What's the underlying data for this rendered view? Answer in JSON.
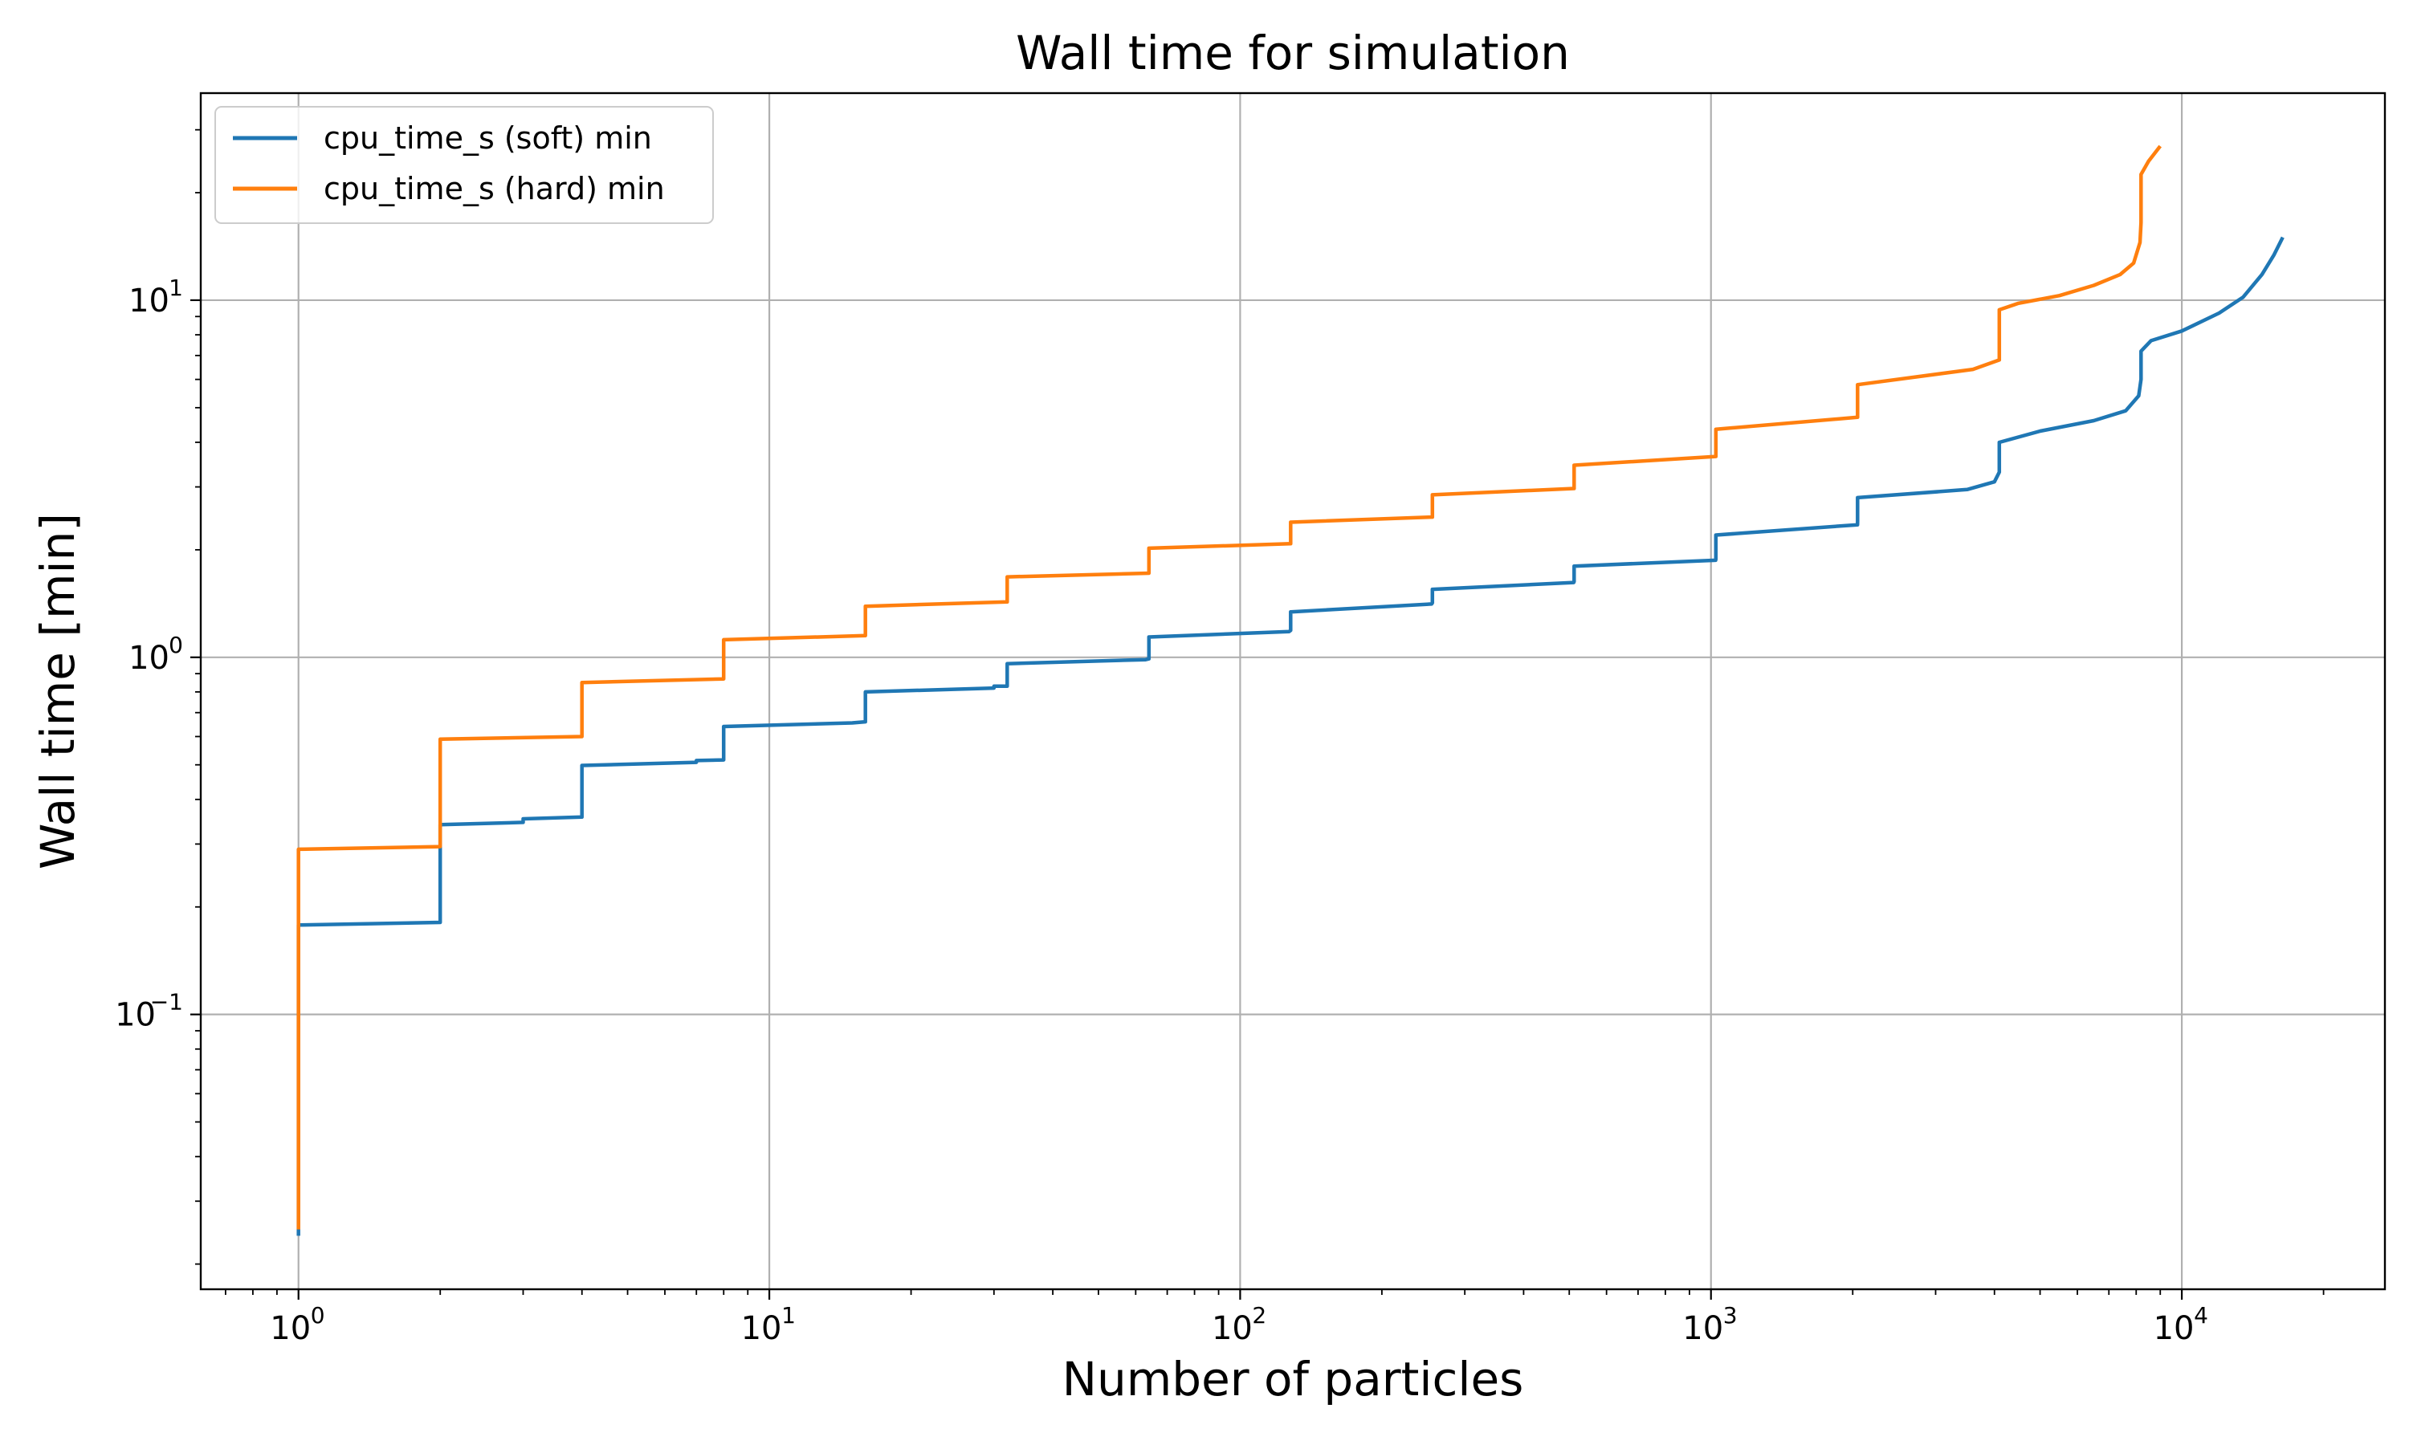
{
  "chart_data": {
    "type": "line",
    "title": "Wall time for simulation",
    "xlabel": "Number of particles",
    "ylabel": "Wall time [min]",
    "xscale": "log",
    "yscale": "log",
    "xlim": [
      0.62,
      27000
    ],
    "ylim": [
      0.017,
      38
    ],
    "grid": true,
    "legend_position": "upper-left",
    "x_ticks": [
      {
        "value": 1,
        "base": "10",
        "exp": "0"
      },
      {
        "value": 10,
        "base": "10",
        "exp": "1"
      },
      {
        "value": 100,
        "base": "10",
        "exp": "2"
      },
      {
        "value": 1000,
        "base": "10",
        "exp": "3"
      },
      {
        "value": 10000,
        "base": "10",
        "exp": "4"
      }
    ],
    "y_ticks": [
      {
        "value": 0.1,
        "base": "10",
        "exp": "−1"
      },
      {
        "value": 1,
        "base": "10",
        "exp": "0"
      },
      {
        "value": 10,
        "base": "10",
        "exp": "1"
      }
    ],
    "series": [
      {
        "name": "cpu_time_s (soft) min",
        "color": "#1f77b4",
        "points": [
          [
            1,
            0.024
          ],
          [
            1,
            0.178
          ],
          [
            2,
            0.181
          ],
          [
            2,
            0.34
          ],
          [
            3,
            0.345
          ],
          [
            3,
            0.353
          ],
          [
            4,
            0.357
          ],
          [
            4,
            0.498
          ],
          [
            7,
            0.508
          ],
          [
            7,
            0.514
          ],
          [
            8,
            0.516
          ],
          [
            8,
            0.64
          ],
          [
            15,
            0.655
          ],
          [
            16,
            0.66
          ],
          [
            16,
            0.8
          ],
          [
            30,
            0.82
          ],
          [
            30,
            0.83
          ],
          [
            32,
            0.83
          ],
          [
            32,
            0.96
          ],
          [
            63,
            0.985
          ],
          [
            64,
            0.99
          ],
          [
            64,
            1.14
          ],
          [
            127,
            1.18
          ],
          [
            128,
            1.19
          ],
          [
            128,
            1.34
          ],
          [
            255,
            1.41
          ],
          [
            256,
            1.42
          ],
          [
            256,
            1.55
          ],
          [
            511,
            1.62
          ],
          [
            512,
            1.63
          ],
          [
            512,
            1.8
          ],
          [
            1023,
            1.87
          ],
          [
            1024,
            1.88
          ],
          [
            1024,
            2.2
          ],
          [
            2047,
            2.35
          ],
          [
            2048,
            2.4
          ],
          [
            2048,
            2.8
          ],
          [
            3500,
            2.95
          ],
          [
            4000,
            3.1
          ],
          [
            4096,
            3.3
          ],
          [
            4096,
            4.0
          ],
          [
            5000,
            4.3
          ],
          [
            6500,
            4.6
          ],
          [
            7600,
            4.9
          ],
          [
            8100,
            5.4
          ],
          [
            8192,
            6.0
          ],
          [
            8192,
            7.2
          ],
          [
            8600,
            7.7
          ],
          [
            10000,
            8.2
          ],
          [
            12000,
            9.2
          ],
          [
            13500,
            10.2
          ],
          [
            14800,
            11.8
          ],
          [
            15700,
            13.4
          ],
          [
            16384,
            15.0
          ]
        ]
      },
      {
        "name": "cpu_time_s (hard) min",
        "color": "#ff7f0e",
        "points": [
          [
            1,
            0.025
          ],
          [
            1,
            0.29
          ],
          [
            2,
            0.295
          ],
          [
            2,
            0.59
          ],
          [
            4,
            0.6
          ],
          [
            4,
            0.85
          ],
          [
            8,
            0.87
          ],
          [
            8,
            1.12
          ],
          [
            16,
            1.15
          ],
          [
            16,
            1.39
          ],
          [
            32,
            1.43
          ],
          [
            32,
            1.68
          ],
          [
            64,
            1.72
          ],
          [
            64,
            2.02
          ],
          [
            128,
            2.08
          ],
          [
            128,
            2.39
          ],
          [
            256,
            2.47
          ],
          [
            256,
            2.85
          ],
          [
            512,
            2.97
          ],
          [
            512,
            3.45
          ],
          [
            1024,
            3.65
          ],
          [
            1024,
            4.35
          ],
          [
            2048,
            4.7
          ],
          [
            2048,
            5.8
          ],
          [
            3600,
            6.4
          ],
          [
            4096,
            6.8
          ],
          [
            4096,
            9.4
          ],
          [
            4500,
            9.8
          ],
          [
            5500,
            10.3
          ],
          [
            6500,
            11.0
          ],
          [
            7400,
            11.8
          ],
          [
            7900,
            12.7
          ],
          [
            8150,
            14.5
          ],
          [
            8192,
            16.5
          ],
          [
            8192,
            22.5
          ],
          [
            8500,
            24.5
          ],
          [
            9000,
            27.0
          ]
        ]
      }
    ]
  }
}
